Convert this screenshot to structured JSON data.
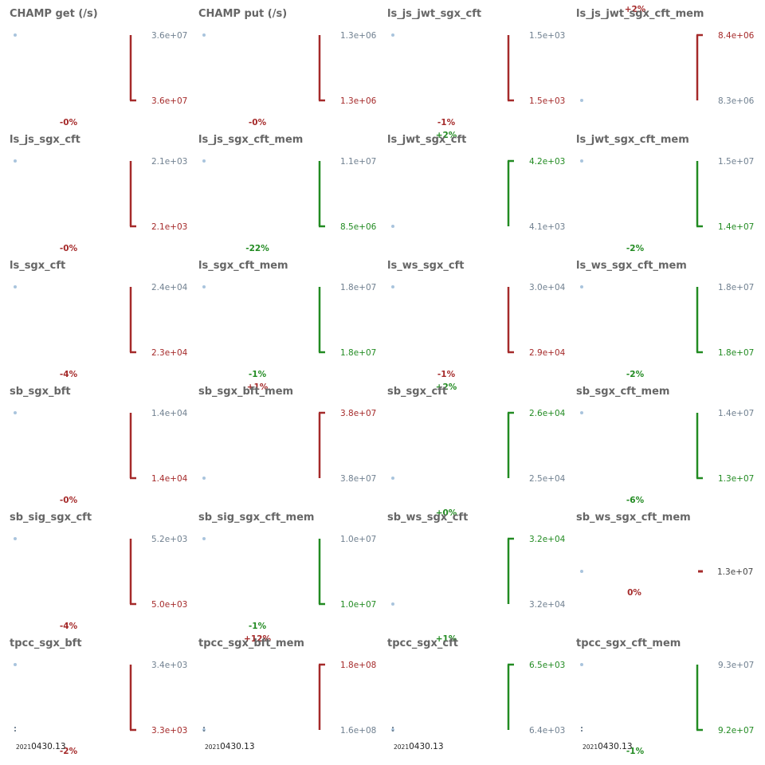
{
  "colors": {
    "worse": "#a52a2a",
    "better": "#228b22",
    "neutral": "#708090",
    "point": "#a9c4dd",
    "title": "#666666"
  },
  "chart_data": [
    {
      "type": "scatter",
      "title": "CHAMP get (/s)",
      "top_label": "3.6e+07",
      "bottom_label": "3.6e+07",
      "change": "-0%",
      "direction": "worse",
      "first": "top",
      "date_label": ""
    },
    {
      "type": "scatter",
      "title": "CHAMP put (/s)",
      "top_label": "1.3e+06",
      "bottom_label": "1.3e+06",
      "change": "-0%",
      "direction": "worse",
      "first": "top",
      "date_label": ""
    },
    {
      "type": "scatter",
      "title": "ls_js_jwt_sgx_cft",
      "top_label": "1.5e+03",
      "bottom_label": "1.5e+03",
      "change": "-1%",
      "direction": "worse",
      "first": "top",
      "date_label": ""
    },
    {
      "type": "scatter",
      "title": "ls_js_jwt_sgx_cft_mem",
      "top_label": "8.4e+06",
      "bottom_label": "8.3e+06",
      "change": "+2%",
      "direction": "worse",
      "first": "bottom",
      "date_label": ""
    },
    {
      "type": "scatter",
      "title": "ls_js_sgx_cft",
      "top_label": "2.1e+03",
      "bottom_label": "2.1e+03",
      "change": "-0%",
      "direction": "worse",
      "first": "top",
      "date_label": ""
    },
    {
      "type": "scatter",
      "title": "ls_js_sgx_cft_mem",
      "top_label": "1.1e+07",
      "bottom_label": "8.5e+06",
      "change": "-22%",
      "direction": "better",
      "first": "top",
      "date_label": ""
    },
    {
      "type": "scatter",
      "title": "ls_jwt_sgx_cft",
      "top_label": "4.2e+03",
      "bottom_label": "4.1e+03",
      "change": "+2%",
      "direction": "better",
      "first": "bottom",
      "date_label": ""
    },
    {
      "type": "scatter",
      "title": "ls_jwt_sgx_cft_mem",
      "top_label": "1.5e+07",
      "bottom_label": "1.4e+07",
      "change": "-2%",
      "direction": "better",
      "first": "top",
      "date_label": ""
    },
    {
      "type": "scatter",
      "title": "ls_sgx_cft",
      "top_label": "2.4e+04",
      "bottom_label": "2.3e+04",
      "change": "-4%",
      "direction": "worse",
      "first": "top",
      "date_label": ""
    },
    {
      "type": "scatter",
      "title": "ls_sgx_cft_mem",
      "top_label": "1.8e+07",
      "bottom_label": "1.8e+07",
      "change": "-1%",
      "direction": "better",
      "first": "top",
      "date_label": ""
    },
    {
      "type": "scatter",
      "title": "ls_ws_sgx_cft",
      "top_label": "3.0e+04",
      "bottom_label": "2.9e+04",
      "change": "-1%",
      "direction": "worse",
      "first": "top",
      "date_label": ""
    },
    {
      "type": "scatter",
      "title": "ls_ws_sgx_cft_mem",
      "top_label": "1.8e+07",
      "bottom_label": "1.8e+07",
      "change": "-2%",
      "direction": "better",
      "first": "top",
      "date_label": ""
    },
    {
      "type": "scatter",
      "title": "sb_sgx_bft",
      "top_label": "1.4e+04",
      "bottom_label": "1.4e+04",
      "change": "-0%",
      "direction": "worse",
      "first": "top",
      "date_label": ""
    },
    {
      "type": "scatter",
      "title": "sb_sgx_bft_mem",
      "top_label": "3.8e+07",
      "bottom_label": "3.8e+07",
      "change": "+1%",
      "direction": "worse",
      "first": "bottom",
      "date_label": ""
    },
    {
      "type": "scatter",
      "title": "sb_sgx_cft",
      "top_label": "2.6e+04",
      "bottom_label": "2.5e+04",
      "change": "+2%",
      "direction": "better",
      "first": "bottom",
      "date_label": ""
    },
    {
      "type": "scatter",
      "title": "sb_sgx_cft_mem",
      "top_label": "1.4e+07",
      "bottom_label": "1.3e+07",
      "change": "-6%",
      "direction": "better",
      "first": "top",
      "date_label": ""
    },
    {
      "type": "scatter",
      "title": "sb_sig_sgx_cft",
      "top_label": "5.2e+03",
      "bottom_label": "5.0e+03",
      "change": "-4%",
      "direction": "worse",
      "first": "top",
      "date_label": ""
    },
    {
      "type": "scatter",
      "title": "sb_sig_sgx_cft_mem",
      "top_label": "1.0e+07",
      "bottom_label": "1.0e+07",
      "change": "-1%",
      "direction": "better",
      "first": "top",
      "date_label": ""
    },
    {
      "type": "scatter",
      "title": "sb_ws_sgx_cft",
      "top_label": "3.2e+04",
      "bottom_label": "3.2e+04",
      "change": "+0%",
      "direction": "better",
      "first": "bottom",
      "date_label": ""
    },
    {
      "type": "scatter",
      "title": "sb_ws_sgx_cft_mem",
      "top_label": "",
      "bottom_label": "",
      "single_label": "1.3e+07",
      "change": "0%",
      "direction": "worse",
      "first": "mid",
      "date_label": ""
    },
    {
      "type": "scatter",
      "title": "tpcc_sgx_bft",
      "top_label": "3.4e+03",
      "bottom_label": "3.3e+03",
      "change": "-2%",
      "direction": "worse",
      "first": "top",
      "date_label": "20210430.13",
      "date_prefix": "2021",
      "date_main": "0430.13"
    },
    {
      "type": "scatter",
      "title": "tpcc_sgx_bft_mem",
      "top_label": "1.8e+08",
      "bottom_label": "1.6e+08",
      "change": "+12%",
      "direction": "worse",
      "first": "bottom",
      "date_label": "20210430.13",
      "date_prefix": "2021",
      "date_main": "0430.13"
    },
    {
      "type": "scatter",
      "title": "tpcc_sgx_cft",
      "top_label": "6.5e+03",
      "bottom_label": "6.4e+03",
      "change": "+1%",
      "direction": "better",
      "first": "bottom",
      "date_label": "20210430.13",
      "date_prefix": "2021",
      "date_main": "0430.13"
    },
    {
      "type": "scatter",
      "title": "tpcc_sgx_cft_mem",
      "top_label": "9.3e+07",
      "bottom_label": "9.2e+07",
      "change": "-1%",
      "direction": "better",
      "first": "top",
      "date_label": "20210430.13",
      "date_prefix": "2021",
      "date_main": "0430.13"
    }
  ]
}
